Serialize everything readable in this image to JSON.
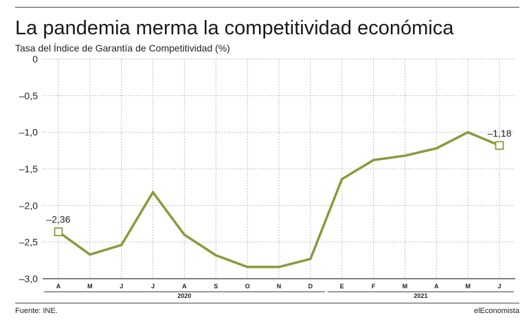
{
  "header": {
    "title": "La pandemia merma la competitividad económica",
    "subtitle": "Tasa del Índice de Garantía de Competitividad (%)"
  },
  "footer": {
    "source": "Fuente: INE.",
    "brand": "elEconomista"
  },
  "colors": {
    "line": "#8a9a3a",
    "grid": "#bdbdbd",
    "axis": "#333333"
  },
  "chart_data": {
    "type": "line",
    "title": "La pandemia merma la competitividad económica",
    "subtitle": "Tasa del Índice de Garantía de Competitividad (%)",
    "xlabel": "",
    "ylabel": "",
    "ylim": [
      -3.0,
      0
    ],
    "yticks": [
      0,
      -0.5,
      -1.0,
      -1.5,
      -2.0,
      -2.5,
      -3.0
    ],
    "ytick_labels": [
      "0",
      "–0,5",
      "–1,0",
      "–1,5",
      "–2,0",
      "–2,5",
      "–3,0"
    ],
    "categories": [
      "A",
      "M",
      "J",
      "J",
      "A",
      "S",
      "O",
      "N",
      "D",
      "E",
      "F",
      "M",
      "A",
      "M",
      "J"
    ],
    "year_groups": [
      {
        "label": "2020",
        "start": 0,
        "end": 8
      },
      {
        "label": "2021",
        "start": 9,
        "end": 14
      }
    ],
    "grid": true,
    "series": [
      {
        "values": [
          -2.36,
          -2.67,
          -2.54,
          -1.82,
          -2.4,
          -2.68,
          -2.84,
          -2.84,
          -2.73,
          -1.64,
          -1.38,
          -1.32,
          -1.22,
          -1.0,
          -1.18
        ]
      }
    ],
    "annotations": [
      {
        "index": 0,
        "text": "–2,36"
      },
      {
        "index": 14,
        "text": "–1,18"
      }
    ]
  }
}
